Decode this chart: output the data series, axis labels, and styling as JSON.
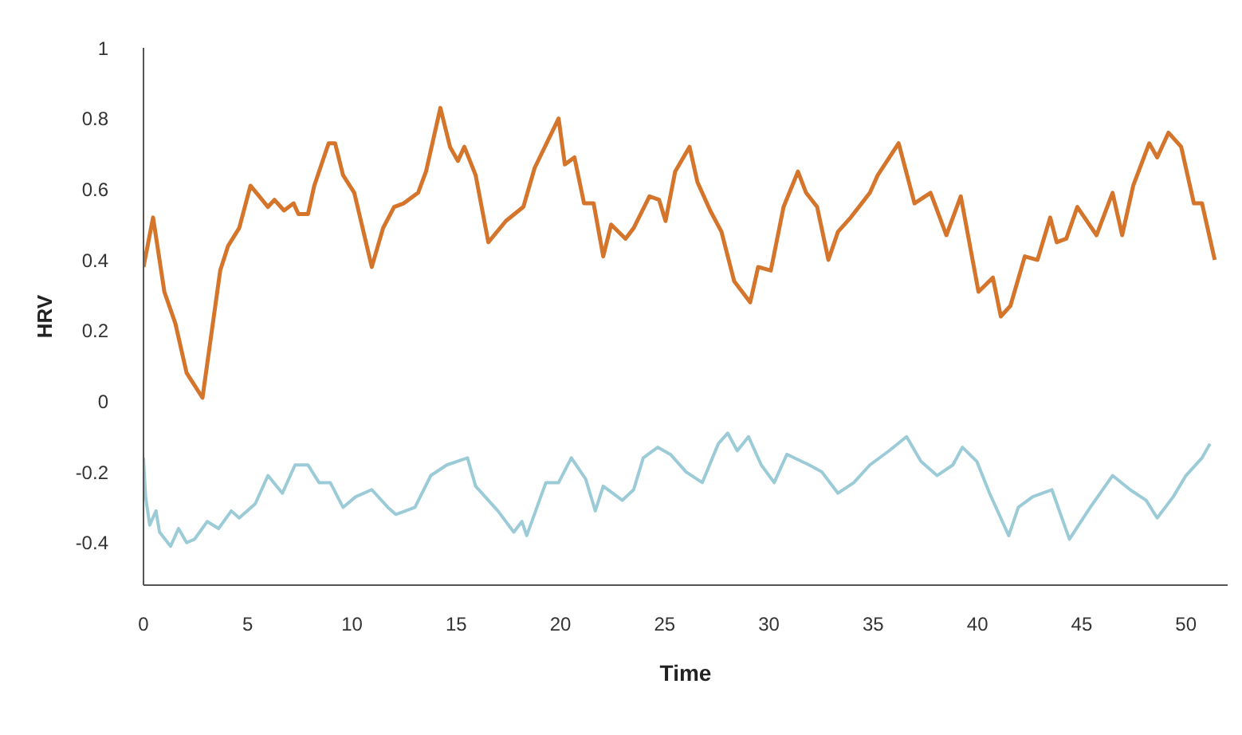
{
  "chart_data": {
    "type": "line",
    "xlabel": "Time",
    "ylabel": "HRV",
    "xlim": [
      0,
      52
    ],
    "ylim": [
      -0.52,
      1
    ],
    "xticks": [
      0,
      5,
      10,
      15,
      20,
      25,
      30,
      35,
      40,
      45,
      50
    ],
    "yticks": [
      -0.4,
      -0.2,
      0,
      0.2,
      0.4,
      0.6,
      0.8,
      1
    ],
    "grid": false,
    "marker": "none",
    "line_style": "solid",
    "series": [
      {
        "color": "#d4752b",
        "x": [
          0,
          0.46,
          1.0,
          1.53,
          2.07,
          2.83,
          3.68,
          4.06,
          4.59,
          5.13,
          5.97,
          6.28,
          6.74,
          7.2,
          7.43,
          7.89,
          8.19,
          8.88,
          9.19,
          9.57,
          10.11,
          10.95,
          11.49,
          12.02,
          12.48,
          13.17,
          13.55,
          14.24,
          14.7,
          15.08,
          15.39,
          15.93,
          16.54,
          17.38,
          18.22,
          18.76,
          19.91,
          20.21,
          20.67,
          21.13,
          21.59,
          22.05,
          22.43,
          23.12,
          23.51,
          24.27,
          24.73,
          25.04,
          25.5,
          26.19,
          26.57,
          27.18,
          27.72,
          28.33,
          29.1,
          29.48,
          30.09,
          30.7,
          31.39,
          31.78,
          32.31,
          32.85,
          33.31,
          33.92,
          34.84,
          35.22,
          36.22,
          36.98,
          37.75,
          38.51,
          39.2,
          40.05,
          40.74,
          41.12,
          41.58,
          42.27,
          42.88,
          43.49,
          43.8,
          44.26,
          44.79,
          45.71,
          46.48,
          46.94,
          47.47,
          48.24,
          48.62,
          49.16,
          49.77,
          50.38,
          50.77,
          51.38
        ],
        "values": [
          0.38,
          0.52,
          0.31,
          0.22,
          0.08,
          0.01,
          0.37,
          0.44,
          0.49,
          0.61,
          0.55,
          0.57,
          0.54,
          0.56,
          0.53,
          0.53,
          0.61,
          0.73,
          0.73,
          0.64,
          0.59,
          0.38,
          0.49,
          0.55,
          0.56,
          0.59,
          0.65,
          0.83,
          0.72,
          0.68,
          0.72,
          0.64,
          0.45,
          0.51,
          0.55,
          0.66,
          0.8,
          0.67,
          0.69,
          0.56,
          0.56,
          0.41,
          0.5,
          0.46,
          0.49,
          0.58,
          0.57,
          0.51,
          0.65,
          0.72,
          0.62,
          0.54,
          0.48,
          0.34,
          0.28,
          0.38,
          0.37,
          0.55,
          0.65,
          0.59,
          0.55,
          0.4,
          0.48,
          0.52,
          0.59,
          0.64,
          0.73,
          0.56,
          0.59,
          0.47,
          0.58,
          0.31,
          0.35,
          0.24,
          0.27,
          0.41,
          0.4,
          0.52,
          0.45,
          0.46,
          0.55,
          0.47,
          0.59,
          0.47,
          0.61,
          0.73,
          0.69,
          0.76,
          0.72,
          0.56,
          0.56,
          0.4
        ]
      },
      {
        "color": "#9ccbd8",
        "x": [
          0,
          0.1,
          0.3,
          0.6,
          0.77,
          1.3,
          1.68,
          2.07,
          2.45,
          3.06,
          3.6,
          4.21,
          4.59,
          5.36,
          5.97,
          6.66,
          7.27,
          7.89,
          8.42,
          8.96,
          9.57,
          10.18,
          10.95,
          11.72,
          12.1,
          13.02,
          13.78,
          14.55,
          15.54,
          15.93,
          17.0,
          17.76,
          18.15,
          18.38,
          19.3,
          19.91,
          20.52,
          21.21,
          21.67,
          22.05,
          22.97,
          23.51,
          23.97,
          24.66,
          25.27,
          26.03,
          26.8,
          27.57,
          28.02,
          28.48,
          29.02,
          29.63,
          30.25,
          30.86,
          31.93,
          32.54,
          33.31,
          34.07,
          34.84,
          35.76,
          36.6,
          37.29,
          38.06,
          38.82,
          39.28,
          39.97,
          40.58,
          41.5,
          41.96,
          42.65,
          43.57,
          44.41,
          45.41,
          46.48,
          47.32,
          48.09,
          48.62,
          49.39,
          50.0,
          50.77,
          51.15
        ],
        "values": [
          -0.16,
          -0.27,
          -0.35,
          -0.31,
          -0.37,
          -0.41,
          -0.36,
          -0.4,
          -0.39,
          -0.34,
          -0.36,
          -0.31,
          -0.33,
          -0.29,
          -0.21,
          -0.26,
          -0.18,
          -0.18,
          -0.23,
          -0.23,
          -0.3,
          -0.27,
          -0.25,
          -0.3,
          -0.32,
          -0.3,
          -0.21,
          -0.18,
          -0.16,
          -0.24,
          -0.31,
          -0.37,
          -0.34,
          -0.38,
          -0.23,
          -0.23,
          -0.16,
          -0.22,
          -0.31,
          -0.24,
          -0.28,
          -0.25,
          -0.16,
          -0.13,
          -0.15,
          -0.2,
          -0.23,
          -0.12,
          -0.09,
          -0.14,
          -0.1,
          -0.18,
          -0.23,
          -0.15,
          -0.18,
          -0.2,
          -0.26,
          -0.23,
          -0.18,
          -0.14,
          -0.1,
          -0.17,
          -0.21,
          -0.18,
          -0.13,
          -0.17,
          -0.26,
          -0.38,
          -0.3,
          -0.27,
          -0.25,
          -0.39,
          -0.3,
          -0.21,
          -0.25,
          -0.28,
          -0.33,
          -0.27,
          -0.21,
          -0.16,
          -0.12
        ]
      }
    ]
  }
}
